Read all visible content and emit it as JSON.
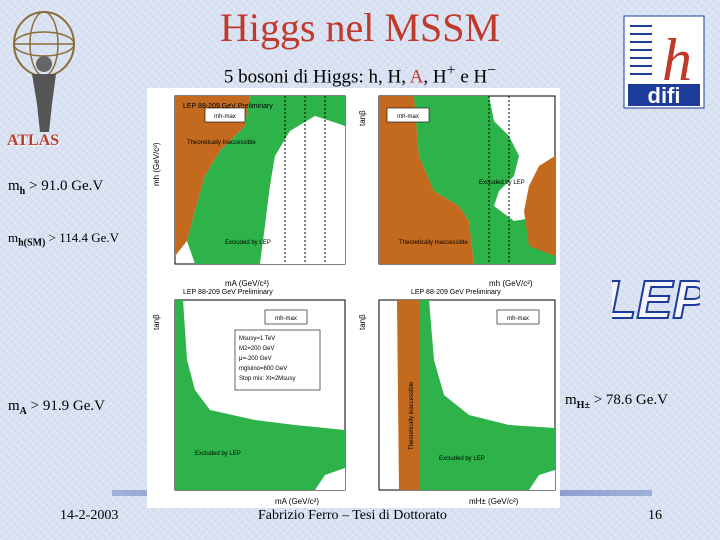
{
  "title": "Higgs nel MSSM",
  "subtitle": {
    "prefix": "5 bosoni di Higgs: h, H, ",
    "highlight": "A",
    "suffix": ", H",
    "sup_plus": "+",
    "mid": " e H",
    "sup_minus": "−"
  },
  "atlas_label": "ATLAS",
  "limits": {
    "mh": {
      "m": "m",
      "sub": "h",
      "rest": " > 91.0 Ge.V"
    },
    "mhsm": {
      "m": "m",
      "sub": "h(SM)",
      "rest": " > 114.4 Ge.V"
    },
    "ma": {
      "m": "m",
      "sub": "A",
      "rest": " > 91.9 Ge.V"
    },
    "mhpm": {
      "m": "m",
      "sub": "H±",
      "rest": " > 78.6 Ge.V"
    }
  },
  "lep_logo": "LEP",
  "difi_logo": {
    "h": "h",
    "text": "difi"
  },
  "footer": {
    "date": "14-2-2003",
    "author": "Fabrizio Ferro – Tesi di Dottorato",
    "page": "16"
  },
  "plots": {
    "header": "LEP 88-209 GeV Preliminary",
    "tl": {
      "ylabel": "mh (GeV/c²)",
      "xlabel": "mA (GeV/c²)",
      "legend": "mh-max",
      "ticks_y": [
        "160",
        "140",
        "120",
        "100",
        "80",
        "60",
        "40",
        "20",
        "0"
      ],
      "ticks_x": [
        "0",
        "20",
        "40",
        "60",
        "80",
        "100",
        "120",
        "140"
      ],
      "label_inaccessible": "Theoretically Inaccessible",
      "label_excluded": "Excluded by LEP"
    },
    "tr": {
      "ylabel": "tanβ",
      "xlabel": "mh (GeV/c²)",
      "legend": "mh-max",
      "ticks_y": [
        "10",
        "1"
      ],
      "ticks_x": [
        "0",
        "20",
        "40",
        "60",
        "80",
        "100",
        "120",
        "140"
      ],
      "label_inaccessible": "Theoretically Inaccessible",
      "label_excluded": "Excluded by LEP"
    },
    "bl": {
      "ylabel": "tanβ",
      "xlabel": "mA (GeV/c²)",
      "legend": "mh-max",
      "ticks_y": [
        "10",
        "1"
      ],
      "ticks_x": [
        "0",
        "100",
        "200",
        "300",
        "400",
        "500"
      ],
      "label_excluded": "Excluded by LEP",
      "params": [
        "Msusy=1 TeV",
        "M2=200 GeV",
        "μ=-200 GeV",
        "mgluino=800 GeV",
        "Stop mix: Xt=2Msusy"
      ]
    },
    "br": {
      "ylabel": "tanβ",
      "xlabel": "mH± (GeV/c²)",
      "legend": "mh-max",
      "ticks_y": [
        "10",
        "1"
      ],
      "ticks_x": [
        "0",
        "100",
        "200",
        "300",
        "400",
        "500"
      ],
      "label_excluded": "Excluded by LEP",
      "label_inaccessible": "Theoretically inaccessible"
    }
  },
  "colors": {
    "title": "#c0392b",
    "excluded": "#2db34a",
    "inaccessible": "#c46a1e",
    "difi_blue": "#1d3c9a",
    "difi_red": "#c0392b"
  }
}
